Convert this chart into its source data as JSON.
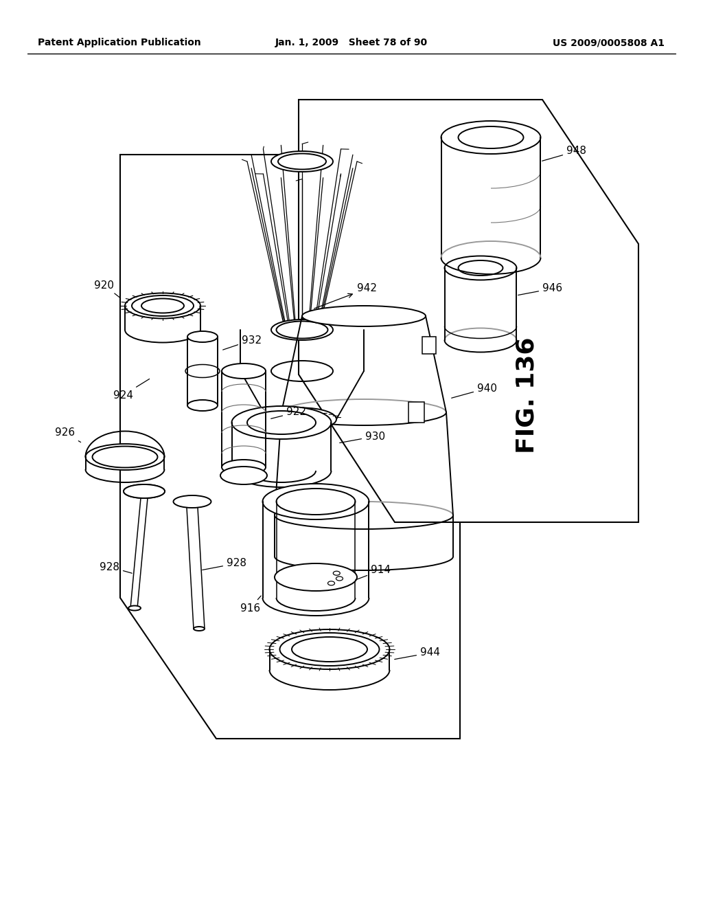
{
  "bg_color": "#ffffff",
  "header_left": "Patent Application Publication",
  "header_center": "Jan. 1, 2009   Sheet 78 of 90",
  "header_right": "US 2009/0005808 A1",
  "fig_label": "FIG. 136"
}
